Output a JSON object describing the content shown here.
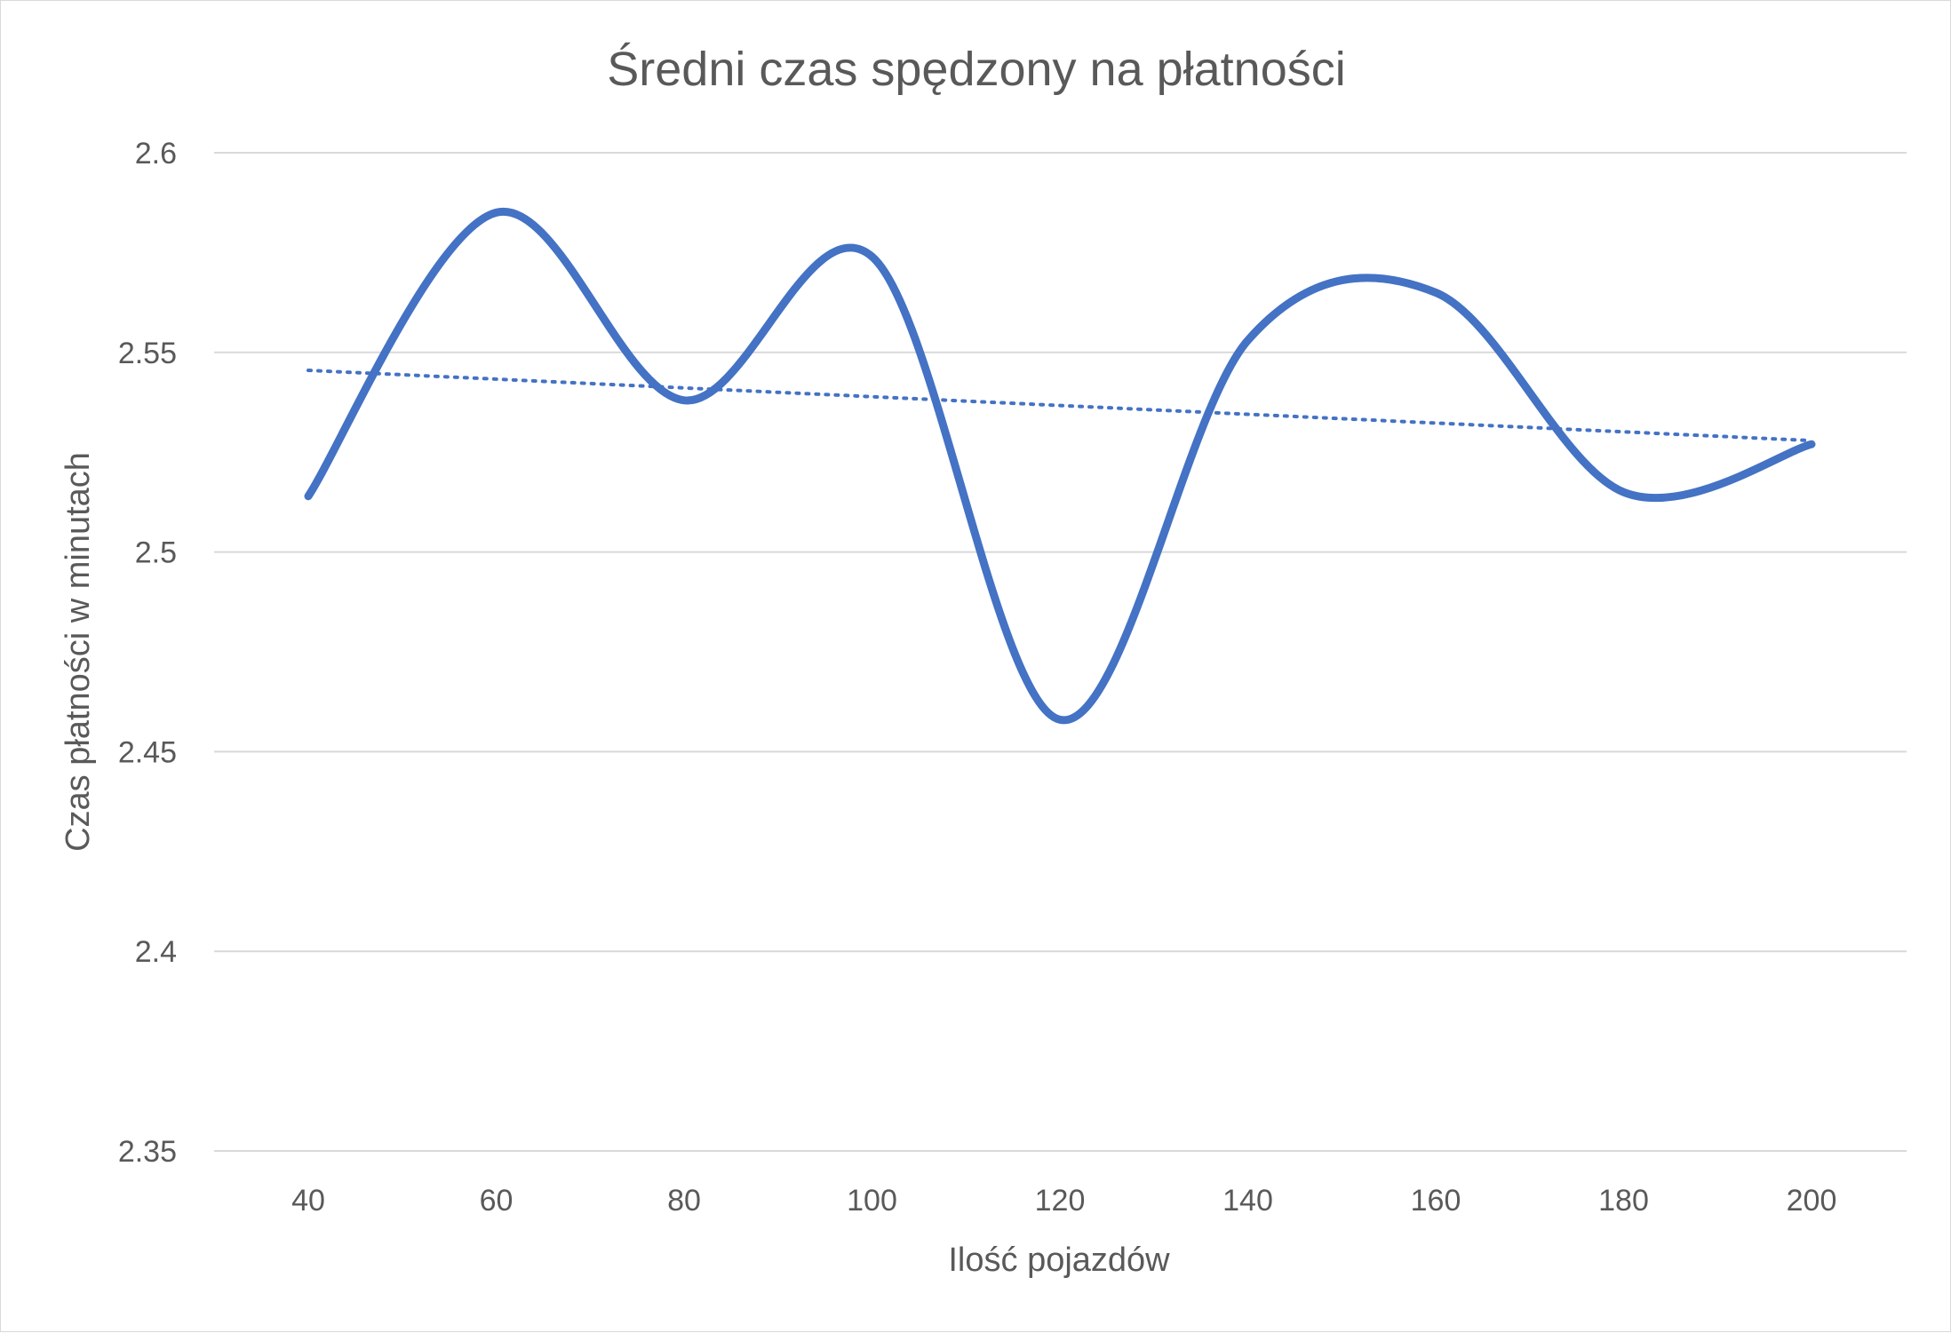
{
  "chart_data": {
    "type": "line",
    "title": "Średni czas spędzony na płatności",
    "xlabel": "Ilość pojazdów",
    "ylabel": "Czas płatności w minutach",
    "x": [
      40,
      60,
      80,
      100,
      120,
      140,
      160,
      180,
      200
    ],
    "x_tick_labels": [
      "40",
      "60",
      "80",
      "100",
      "120",
      "140",
      "160",
      "180",
      "200"
    ],
    "y_tick_values": [
      2.35,
      2.4,
      2.45,
      2.5,
      2.55,
      2.6
    ],
    "y_tick_labels": [
      "2.35",
      "2.4",
      "2.45",
      "2.5",
      "2.55",
      "2.6"
    ],
    "ylim": [
      2.35,
      2.6
    ],
    "grid": "horizontal",
    "legend": "none",
    "series": [
      {
        "values": [
          2.514,
          2.585,
          2.538,
          2.574,
          2.458,
          2.553,
          2.565,
          2.515,
          2.527
        ],
        "color": "#4472C4",
        "style": "smooth-solid"
      },
      {
        "values": [
          2.5455,
          2.5433,
          2.5411,
          2.5389,
          2.5367,
          2.5345,
          2.5323,
          2.5301,
          2.5279
        ],
        "color": "#4472C4",
        "style": "dotted-linear-trend"
      }
    ],
    "colors": {
      "line": "#4472C4",
      "grid": "#d9d9d9",
      "text": "#595959"
    }
  }
}
